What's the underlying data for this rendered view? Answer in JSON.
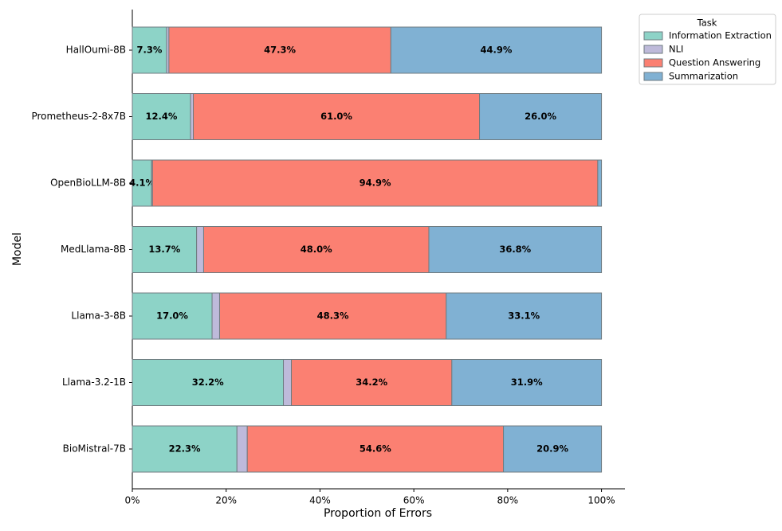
{
  "chart_data": {
    "type": "stacked-barh",
    "x_label": "Proportion of Errors",
    "y_label": "Model",
    "categories": [
      "HallOumi-8B",
      "Prometheus-2-8x7B",
      "OpenBioLLM-8B",
      "MedLlama-8B",
      "Llama-3-8B",
      "Llama-3.2-1B",
      "BioMistral-7B"
    ],
    "series": [
      {
        "name": "Information Extraction",
        "color": "#8dd3c7",
        "values": [
          7.3,
          12.4,
          4.1,
          13.7,
          17.0,
          32.2,
          22.3
        ],
        "value_labels": [
          "7.3%",
          "12.4%",
          "4.1%",
          "13.7%",
          "17.0%",
          "32.2%",
          "22.3%"
        ]
      },
      {
        "name": "NLI",
        "color": "#bebada",
        "values": [
          0.5,
          0.6,
          0.2,
          1.5,
          1.6,
          1.7,
          2.2
        ]
      },
      {
        "name": "Question Answering",
        "color": "#fb8072",
        "values": [
          47.3,
          61.0,
          94.9,
          48.0,
          48.3,
          34.2,
          54.6
        ],
        "value_labels": [
          "47.3%",
          "61.0%",
          "94.9%",
          "48.0%",
          "48.3%",
          "34.2%",
          "54.6%"
        ]
      },
      {
        "name": "Summarization",
        "color": "#80b1d3",
        "values": [
          44.9,
          26.0,
          0.8,
          36.8,
          33.1,
          31.9,
          20.9
        ],
        "value_labels": [
          "44.9%",
          "26.0%",
          null,
          "36.8%",
          "33.1%",
          "31.9%",
          "20.9%"
        ]
      }
    ],
    "legend_title": "Task",
    "legend_position": "upper-right-outside",
    "xlim": [
      0,
      105
    ],
    "xticks": [
      {
        "value": 0,
        "label": "0%"
      },
      {
        "value": 20,
        "label": "20%"
      },
      {
        "value": 40,
        "label": "40%"
      },
      {
        "value": 60,
        "label": "60%"
      },
      {
        "value": 80,
        "label": "80%"
      },
      {
        "value": 100,
        "label": "100%"
      }
    ]
  }
}
